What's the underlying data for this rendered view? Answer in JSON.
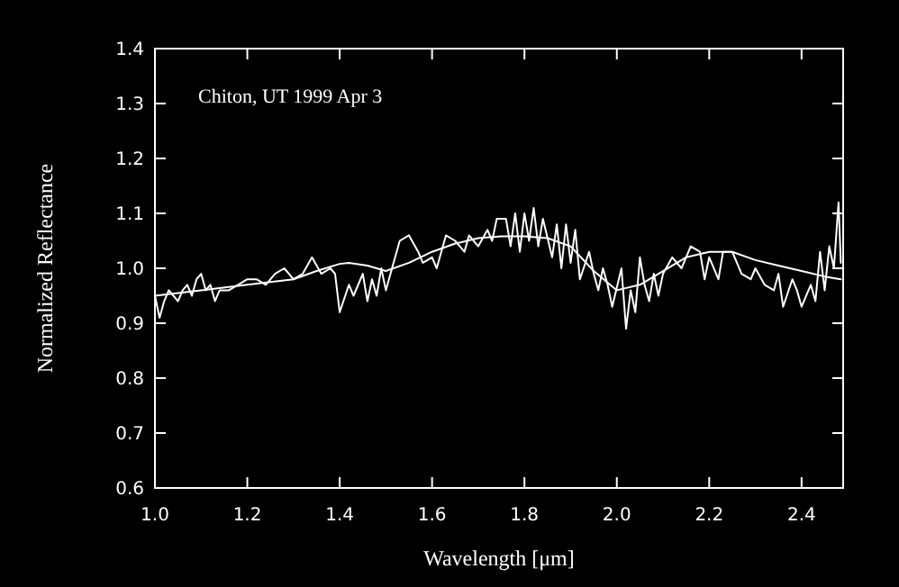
{
  "chart_data": {
    "type": "line",
    "xlabel": "Wavelength [μm]",
    "ylabel": "Normalized Reflectance",
    "annotations": [
      "Chiton, UT 1999 Apr 3"
    ],
    "xlim": [
      1.0,
      2.49
    ],
    "ylim": [
      0.6,
      1.4
    ],
    "xticks": [
      {
        "value": 1.0,
        "label": "1.0"
      },
      1.2,
      1.4,
      1.6,
      1.8,
      {
        "value": 2.0,
        "label": "2.0"
      },
      2.2,
      2.4
    ],
    "yticks": [
      0.6,
      0.7,
      0.8,
      0.9,
      {
        "value": 1.0,
        "label": "1.0"
      },
      1.1,
      1.2,
      1.3,
      1.4
    ],
    "grid": false,
    "marker": "none",
    "line_style": "solid",
    "series": [
      {
        "color": "#ffffff",
        "x": [
          1.0,
          1.01,
          1.02,
          1.03,
          1.04,
          1.05,
          1.06,
          1.07,
          1.08,
          1.09,
          1.1,
          1.11,
          1.12,
          1.13,
          1.14,
          1.16,
          1.18,
          1.2,
          1.22,
          1.24,
          1.26,
          1.28,
          1.3,
          1.32,
          1.34,
          1.36,
          1.38,
          1.39,
          1.4,
          1.42,
          1.43,
          1.45,
          1.46,
          1.47,
          1.48,
          1.49,
          1.5,
          1.51,
          1.53,
          1.55,
          1.57,
          1.58,
          1.6,
          1.61,
          1.63,
          1.65,
          1.67,
          1.68,
          1.7,
          1.72,
          1.73,
          1.74,
          1.76,
          1.77,
          1.78,
          1.79,
          1.8,
          1.81,
          1.82,
          1.83,
          1.84,
          1.86,
          1.87,
          1.88,
          1.89,
          1.9,
          1.91,
          1.92,
          1.94,
          1.95,
          1.96,
          1.97,
          1.98,
          1.99,
          2.01,
          2.02,
          2.03,
          2.04,
          2.05,
          2.06,
          2.07,
          2.08,
          2.09,
          2.1,
          2.12,
          2.14,
          2.16,
          2.18,
          2.19,
          2.2,
          2.22,
          2.23,
          2.25,
          2.27,
          2.29,
          2.3,
          2.32,
          2.34,
          2.35,
          2.36,
          2.38,
          2.39,
          2.4,
          2.42,
          2.43,
          2.44,
          2.45,
          2.46,
          2.47,
          2.48,
          2.485
        ],
        "values": [
          0.95,
          0.91,
          0.94,
          0.96,
          0.95,
          0.94,
          0.96,
          0.97,
          0.95,
          0.98,
          0.99,
          0.96,
          0.97,
          0.94,
          0.96,
          0.96,
          0.97,
          0.98,
          0.98,
          0.97,
          0.99,
          1.0,
          0.98,
          0.99,
          1.02,
          0.99,
          1.0,
          0.99,
          0.92,
          0.97,
          0.95,
          0.99,
          0.94,
          0.98,
          0.95,
          1.0,
          0.96,
          0.99,
          1.05,
          1.06,
          1.03,
          1.01,
          1.02,
          1.0,
          1.06,
          1.05,
          1.03,
          1.06,
          1.04,
          1.07,
          1.05,
          1.09,
          1.09,
          1.04,
          1.1,
          1.03,
          1.1,
          1.05,
          1.11,
          1.04,
          1.09,
          1.02,
          1.08,
          1.0,
          1.08,
          1.01,
          1.07,
          0.98,
          1.03,
          0.99,
          0.96,
          1.0,
          0.97,
          0.93,
          1.0,
          0.89,
          0.96,
          0.92,
          1.02,
          0.97,
          0.94,
          0.99,
          0.95,
          0.99,
          1.02,
          1.0,
          1.04,
          1.03,
          0.98,
          1.02,
          0.98,
          1.03,
          1.03,
          0.99,
          0.98,
          1.0,
          0.97,
          0.96,
          0.99,
          0.93,
          0.98,
          0.96,
          0.93,
          0.97,
          0.94,
          1.03,
          0.96,
          1.04,
          1.0,
          1.12,
          1.01
        ]
      },
      {
        "color": "#ffffff",
        "x": [
          1.0,
          1.1,
          1.2,
          1.3,
          1.35,
          1.4,
          1.42,
          1.46,
          1.5,
          1.55,
          1.6,
          1.65,
          1.7,
          1.75,
          1.8,
          1.85,
          1.9,
          1.95,
          2.0,
          2.05,
          2.1,
          2.15,
          2.2,
          2.25,
          2.3,
          2.35,
          2.4,
          2.45,
          2.485
        ],
        "values": [
          0.95,
          0.96,
          0.97,
          0.98,
          0.995,
          1.008,
          1.01,
          1.005,
          0.995,
          1.01,
          1.03,
          1.045,
          1.055,
          1.058,
          1.058,
          1.055,
          1.04,
          0.995,
          0.96,
          0.97,
          0.995,
          1.02,
          1.03,
          1.03,
          1.015,
          1.005,
          0.995,
          0.985,
          0.98
        ]
      }
    ]
  }
}
